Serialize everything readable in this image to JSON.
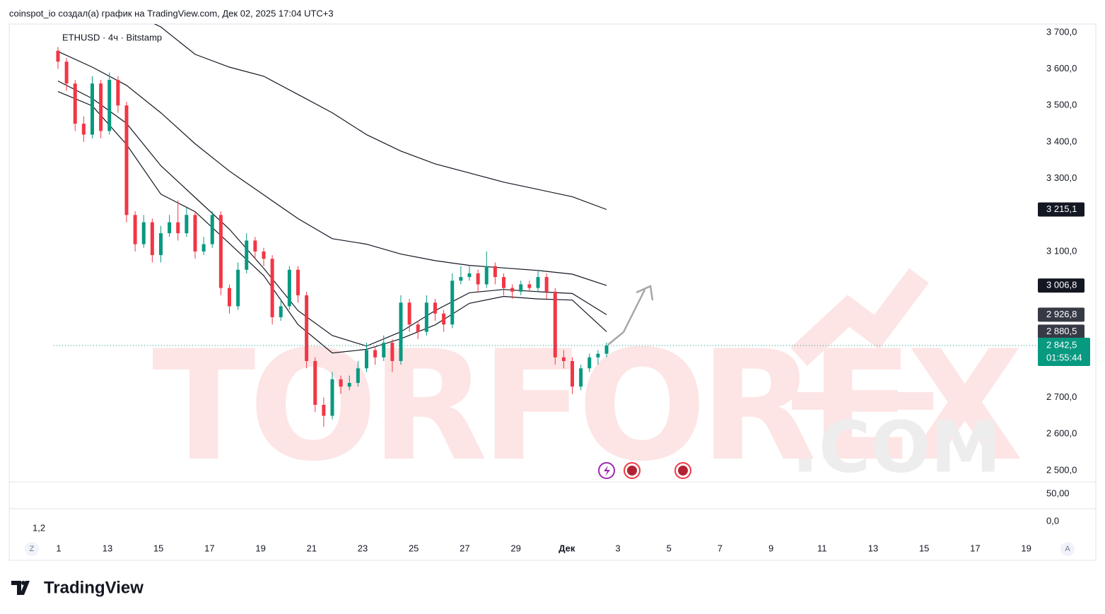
{
  "header": "coinspot_io создал(а) график на TradingView.com, Дек 02, 2025 17:04 UTC+3",
  "footer_logo": "TradingView",
  "watermark": {
    "main": "TORFOREX",
    "suffix": ".COM"
  },
  "chart_data": {
    "type": "candlestick",
    "title": "ETHUSD · 4ч · Bitstamp",
    "up_color": "#089981",
    "down_color": "#f23645",
    "ylim": [
      2469,
      3723
    ],
    "yticks": [
      {
        "value": 3700,
        "label": "3 700,0"
      },
      {
        "value": 3600,
        "label": "3 600,0"
      },
      {
        "value": 3500,
        "label": "3 500,0"
      },
      {
        "value": 3400,
        "label": "3 400,0"
      },
      {
        "value": 3300,
        "label": "3 300,0"
      },
      {
        "value": 3100,
        "label": "3 100,0"
      },
      {
        "value": 2700,
        "label": "2 700,0"
      },
      {
        "value": 2600,
        "label": "2 600,0"
      },
      {
        "value": 2500,
        "label": "2 500,0"
      }
    ],
    "x_labels": [
      "1",
      "13",
      "15",
      "17",
      "19",
      "21",
      "23",
      "25",
      "27",
      "29",
      "Дек",
      "3",
      "5",
      "7",
      "9",
      "11",
      "13",
      "15",
      "17",
      "19"
    ],
    "candles": [
      [
        3650,
        3660,
        3600,
        3620
      ],
      [
        3620,
        3630,
        3540,
        3560
      ],
      [
        3560,
        3570,
        3430,
        3450
      ],
      [
        3450,
        3470,
        3400,
        3420
      ],
      [
        3420,
        3580,
        3410,
        3560
      ],
      [
        3560,
        3570,
        3410,
        3430
      ],
      [
        3430,
        3590,
        3420,
        3570
      ],
      [
        3570,
        3580,
        3480,
        3500
      ],
      [
        3500,
        3510,
        3180,
        3200
      ],
      [
        3200,
        3210,
        3100,
        3120
      ],
      [
        3120,
        3200,
        3110,
        3180
      ],
      [
        3180,
        3190,
        3070,
        3090
      ],
      [
        3090,
        3170,
        3070,
        3150
      ],
      [
        3150,
        3200,
        3140,
        3180
      ],
      [
        3180,
        3240,
        3130,
        3150
      ],
      [
        3150,
        3220,
        3140,
        3200
      ],
      [
        3200,
        3210,
        3080,
        3100
      ],
      [
        3100,
        3140,
        3090,
        3120
      ],
      [
        3120,
        3210,
        3110,
        3200
      ],
      [
        3200,
        3210,
        2980,
        3000
      ],
      [
        3000,
        3010,
        2930,
        2950
      ],
      [
        2950,
        3070,
        2940,
        3050
      ],
      [
        3050,
        3150,
        3040,
        3130
      ],
      [
        3130,
        3140,
        3080,
        3100
      ],
      [
        3100,
        3110,
        3060,
        3080
      ],
      [
        3080,
        3090,
        2900,
        2920
      ],
      [
        2920,
        2970,
        2910,
        2950
      ],
      [
        2950,
        3060,
        2940,
        3050
      ],
      [
        3050,
        3060,
        2960,
        2980
      ],
      [
        2980,
        2990,
        2780,
        2800
      ],
      [
        2800,
        2810,
        2660,
        2680
      ],
      [
        2680,
        2700,
        2620,
        2650
      ],
      [
        2650,
        2770,
        2640,
        2750
      ],
      [
        2750,
        2760,
        2710,
        2730
      ],
      [
        2730,
        2760,
        2720,
        2740
      ],
      [
        2740,
        2800,
        2730,
        2780
      ],
      [
        2780,
        2850,
        2770,
        2830
      ],
      [
        2830,
        2840,
        2790,
        2810
      ],
      [
        2810,
        2870,
        2800,
        2850
      ],
      [
        2850,
        2860,
        2770,
        2800
      ],
      [
        2800,
        2980,
        2790,
        2960
      ],
      [
        2960,
        2970,
        2880,
        2900
      ],
      [
        2900,
        2910,
        2860,
        2880
      ],
      [
        2880,
        2980,
        2870,
        2960
      ],
      [
        2960,
        2970,
        2910,
        2930
      ],
      [
        2930,
        2940,
        2880,
        2900
      ],
      [
        2900,
        3040,
        2890,
        3020
      ],
      [
        3020,
        3060,
        3010,
        3030
      ],
      [
        3030,
        3060,
        3020,
        3040
      ],
      [
        3040,
        3050,
        2990,
        3010
      ],
      [
        3010,
        3100,
        3000,
        3060
      ],
      [
        3060,
        3070,
        3010,
        3030
      ],
      [
        3030,
        3040,
        2980,
        3000
      ],
      [
        3000,
        3010,
        2970,
        2990
      ],
      [
        2990,
        3020,
        2980,
        3010
      ],
      [
        3010,
        3020,
        2990,
        3000
      ],
      [
        3000,
        3050,
        2990,
        3030
      ],
      [
        3030,
        3040,
        2970,
        2990
      ],
      [
        2990,
        3000,
        2790,
        2810
      ],
      [
        2810,
        2830,
        2780,
        2800
      ],
      [
        2800,
        2810,
        2710,
        2730
      ],
      [
        2730,
        2790,
        2720,
        2780
      ],
      [
        2780,
        2820,
        2770,
        2810
      ],
      [
        2810,
        2830,
        2790,
        2820
      ],
      [
        2820,
        2850,
        2810,
        2842.5
      ]
    ],
    "moving_averages": [
      {
        "color": "#131722",
        "values": [
          3850,
          3800,
          3760,
          3715,
          3640,
          3605,
          3580,
          3530,
          3480,
          3420,
          3375,
          3340,
          3315,
          3290,
          3270,
          3250,
          3215.1
        ]
      },
      {
        "color": "#131722",
        "values": [
          3648,
          3605,
          3555,
          3480,
          3395,
          3320,
          3255,
          3190,
          3135,
          3120,
          3093,
          3075,
          3062,
          3055,
          3048,
          3038,
          3006.8
        ]
      },
      {
        "color": "#131722",
        "values": [
          3567,
          3519,
          3451,
          3335,
          3248,
          3161,
          3054,
          2938,
          2870,
          2841,
          2880,
          2938,
          2987,
          2996,
          2990,
          2985,
          2926.8
        ]
      },
      {
        "color": "#131722",
        "values": [
          3538,
          3499,
          3393,
          3257,
          3209,
          3122,
          3034,
          2900,
          2822,
          2832,
          2861,
          2899,
          2958,
          2977,
          2970,
          2967,
          2880.5
        ]
      }
    ],
    "price_labels": [
      {
        "value": 3215.1,
        "label": "3 215,1",
        "color": "#131722"
      },
      {
        "value": 3006.8,
        "label": "3 006,8",
        "color": "#131722"
      },
      {
        "value": 2926.8,
        "label": "2 926,8",
        "color": "#363a45"
      },
      {
        "value": 2880.5,
        "label": "2 880,5",
        "color": "#363a45"
      }
    ],
    "last_price": {
      "value": 2842.5,
      "label": "2 842,5",
      "countdown": "01:55:44",
      "color": "#089981"
    },
    "lower_pane": {
      "ylim": [
        -28,
        72
      ],
      "yticks": [
        {
          "value": 50,
          "label": "50,00"
        },
        {
          "value": 0,
          "label": "0,0"
        }
      ],
      "value_label": "1,2"
    },
    "buttons": [
      "Z",
      "A"
    ]
  }
}
